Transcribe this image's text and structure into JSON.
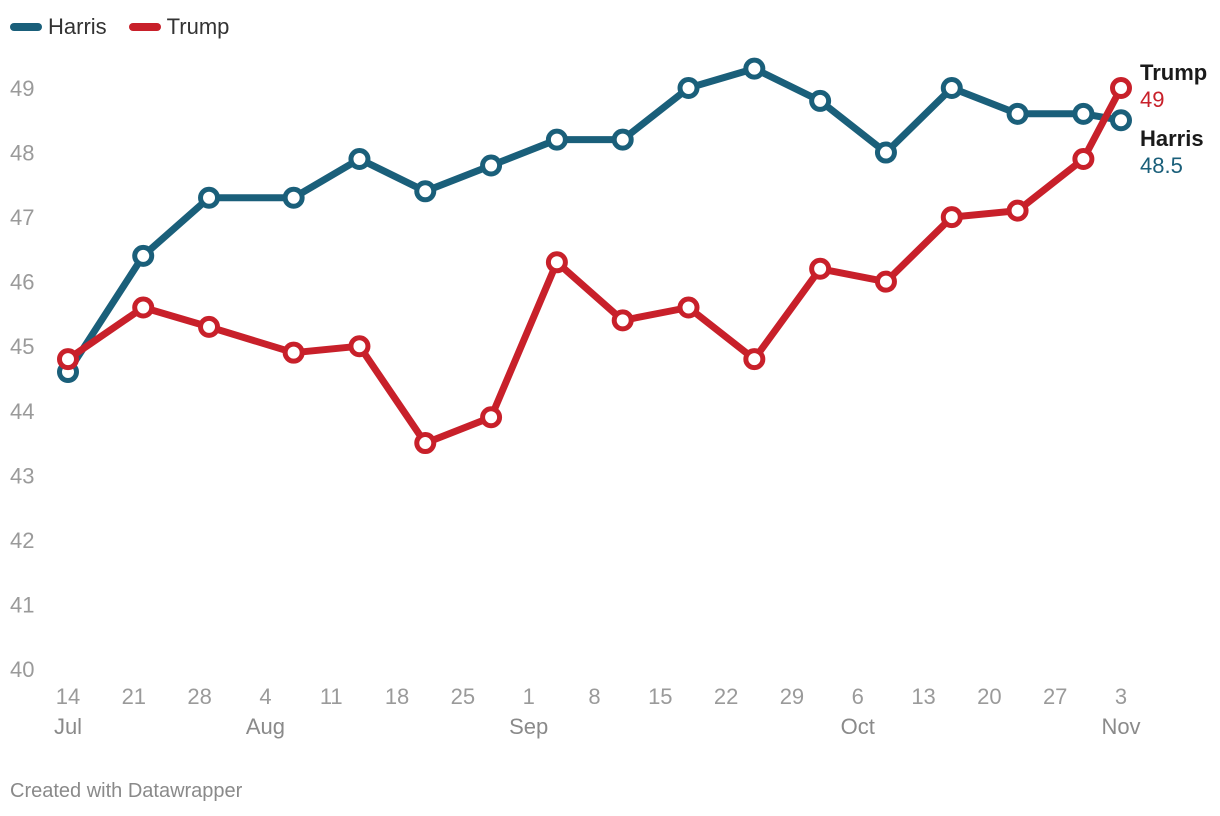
{
  "legend": [
    {
      "name": "Harris",
      "color": "#1a5f7a"
    },
    {
      "name": "Trump",
      "color": "#c8202a"
    }
  ],
  "footer": "Created with Datawrapper",
  "chart_data": {
    "type": "line",
    "title": "",
    "xlabel": "",
    "ylabel": "",
    "ylim": [
      40,
      49.5
    ],
    "y_ticks": [
      40,
      41,
      42,
      43,
      44,
      45,
      46,
      47,
      48,
      49
    ],
    "x_ticks": [
      {
        "day": 0,
        "label": "14"
      },
      {
        "day": 7,
        "label": "21"
      },
      {
        "day": 14,
        "label": "28"
      },
      {
        "day": 21,
        "label": "4"
      },
      {
        "day": 28,
        "label": "11"
      },
      {
        "day": 35,
        "label": "18"
      },
      {
        "day": 42,
        "label": "25"
      },
      {
        "day": 49,
        "label": "1"
      },
      {
        "day": 56,
        "label": "8"
      },
      {
        "day": 63,
        "label": "15"
      },
      {
        "day": 70,
        "label": "22"
      },
      {
        "day": 77,
        "label": "29"
      },
      {
        "day": 84,
        "label": "6"
      },
      {
        "day": 91,
        "label": "13"
      },
      {
        "day": 98,
        "label": "20"
      },
      {
        "day": 105,
        "label": "27"
      },
      {
        "day": 112,
        "label": "3"
      }
    ],
    "month_labels": [
      {
        "day": 0,
        "label": "Jul"
      },
      {
        "day": 21,
        "label": "Aug"
      },
      {
        "day": 49,
        "label": "Sep"
      },
      {
        "day": 84,
        "label": "Oct"
      },
      {
        "day": 112,
        "label": "Nov"
      }
    ],
    "x_range_days": [
      0,
      112
    ],
    "series": [
      {
        "name": "Harris",
        "color": "#1a5f7a",
        "end_value_label": "48.5",
        "points": [
          {
            "day": 0,
            "value": 44.6
          },
          {
            "day": 8,
            "value": 46.4
          },
          {
            "day": 15,
            "value": 47.3
          },
          {
            "day": 24,
            "value": 47.3
          },
          {
            "day": 31,
            "value": 47.9
          },
          {
            "day": 38,
            "value": 47.4
          },
          {
            "day": 45,
            "value": 47.8
          },
          {
            "day": 52,
            "value": 48.2
          },
          {
            "day": 59,
            "value": 48.2
          },
          {
            "day": 66,
            "value": 49.0
          },
          {
            "day": 73,
            "value": 49.3
          },
          {
            "day": 80,
            "value": 48.8
          },
          {
            "day": 87,
            "value": 48.0
          },
          {
            "day": 94,
            "value": 49.0
          },
          {
            "day": 101,
            "value": 48.6
          },
          {
            "day": 108,
            "value": 48.6
          },
          {
            "day": 112,
            "value": 48.5
          }
        ]
      },
      {
        "name": "Trump",
        "color": "#c8202a",
        "end_value_label": "49",
        "points": [
          {
            "day": 0,
            "value": 44.8
          },
          {
            "day": 8,
            "value": 45.6
          },
          {
            "day": 15,
            "value": 45.3
          },
          {
            "day": 24,
            "value": 44.9
          },
          {
            "day": 31,
            "value": 45.0
          },
          {
            "day": 38,
            "value": 43.5
          },
          {
            "day": 45,
            "value": 43.9
          },
          {
            "day": 52,
            "value": 46.3
          },
          {
            "day": 59,
            "value": 45.4
          },
          {
            "day": 66,
            "value": 45.6
          },
          {
            "day": 73,
            "value": 44.8
          },
          {
            "day": 80,
            "value": 46.2
          },
          {
            "day": 87,
            "value": 46.0
          },
          {
            "day": 94,
            "value": 47.0
          },
          {
            "day": 101,
            "value": 47.1
          },
          {
            "day": 108,
            "value": 47.9
          },
          {
            "day": 112,
            "value": 49.0
          }
        ]
      }
    ]
  }
}
